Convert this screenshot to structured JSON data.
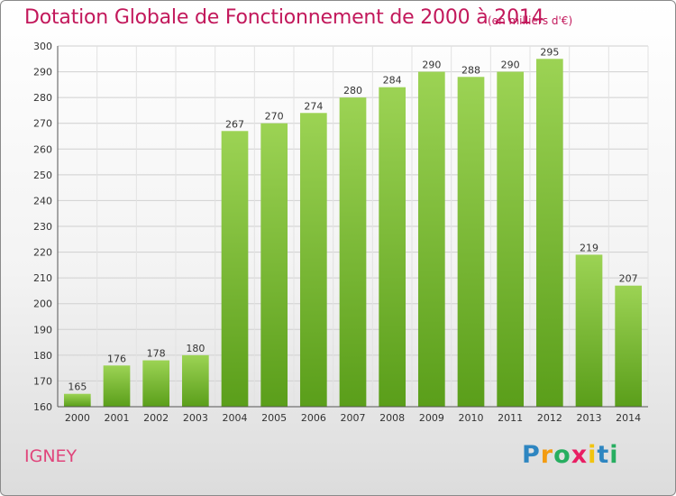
{
  "title": "Dotation Globale de Fonctionnement de 2000 à 2014",
  "subtitle": "(en milliers d'€)",
  "commune": "IGNEY",
  "logo": {
    "letters": [
      "P",
      "r",
      "o",
      "x",
      "i",
      "t",
      "i"
    ],
    "colors": [
      "#2e86c1",
      "#f39c12",
      "#27ae60",
      "#e91e63",
      "#f1c40f",
      "#2e86c1",
      "#27ae60"
    ]
  },
  "colors": {
    "bar_top": "#9cd354",
    "bar_bottom": "#5a9e1a",
    "title": "#c2185b"
  },
  "chart_data": {
    "type": "bar",
    "title": "Dotation Globale de Fonctionnement de 2000 à 2014",
    "subtitle": "(en milliers d'€)",
    "xlabel": "",
    "ylabel": "",
    "categories": [
      "2000",
      "2001",
      "2002",
      "2003",
      "2004",
      "2005",
      "2006",
      "2007",
      "2008",
      "2009",
      "2010",
      "2011",
      "2012",
      "2013",
      "2014"
    ],
    "values": [
      165,
      176,
      178,
      180,
      267,
      270,
      274,
      280,
      284,
      290,
      288,
      290,
      295,
      219,
      207
    ],
    "ylim": [
      160,
      300
    ],
    "yticks": [
      160,
      170,
      180,
      190,
      200,
      210,
      220,
      230,
      240,
      250,
      260,
      270,
      280,
      290,
      300
    ],
    "grid": true,
    "legend": "none"
  }
}
